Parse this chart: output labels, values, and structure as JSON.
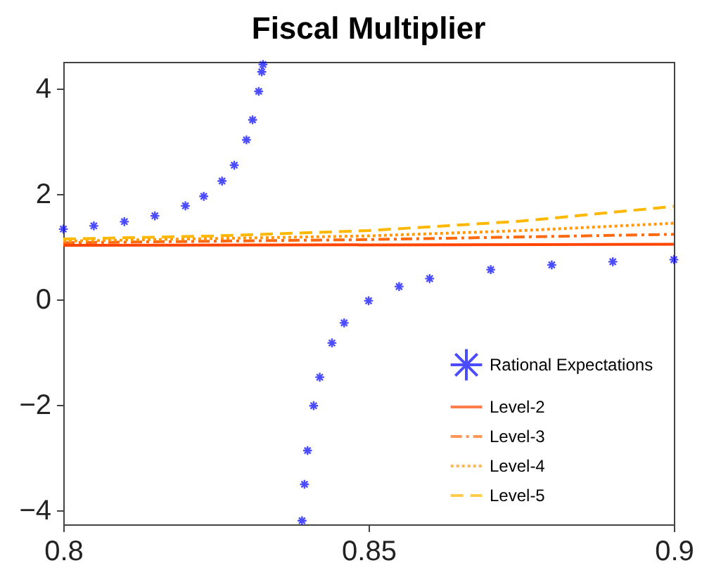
{
  "chart_data": {
    "type": "line",
    "title": "Fiscal Multiplier",
    "xlim": [
      0.8,
      0.9
    ],
    "xticks": [
      0.8,
      0.85,
      0.9
    ],
    "ylim": [
      -4.27,
      4.5
    ],
    "yticks": [
      -4,
      -2,
      0,
      2,
      4
    ],
    "grid": false,
    "legend": "bottom right",
    "series": [
      {
        "name": "Rational Expectations",
        "type": "scatter",
        "marker": "cross",
        "color": "#0000ff",
        "x": [
          0.8,
          0.805,
          0.81,
          0.815,
          0.82,
          0.823,
          0.826,
          0.828,
          0.83,
          0.831,
          0.832,
          0.8325,
          0.8327,
          0.8391,
          0.8395,
          0.84,
          0.841,
          0.842,
          0.844,
          0.846,
          0.85,
          0.855,
          0.86,
          0.87,
          0.88,
          0.89,
          0.9
        ],
        "values": [
          1.33,
          1.39,
          1.47,
          1.58,
          1.77,
          1.95,
          2.24,
          2.54,
          3.02,
          3.4,
          3.94,
          4.31,
          4.45,
          -4.2,
          -3.51,
          -2.87,
          -2.02,
          -1.48,
          -0.83,
          -0.45,
          -0.03,
          0.24,
          0.39,
          0.56,
          0.65,
          0.71,
          0.75
        ]
      },
      {
        "name": "Level-2",
        "line_style": "solid",
        "color": "#ff4500",
        "x": [
          0.8,
          0.9
        ],
        "values": [
          1.02,
          1.04
        ]
      },
      {
        "name": "Level-3",
        "line_style": "dashdot",
        "color": "#ff6a10",
        "x": [
          0.8,
          0.85,
          0.9
        ],
        "values": [
          1.07,
          1.13,
          1.23
        ]
      },
      {
        "name": "Level-4",
        "line_style": "dotted",
        "color": "#ff9a10",
        "x": [
          0.8,
          0.85,
          0.875,
          0.9
        ],
        "values": [
          1.1,
          1.2,
          1.3,
          1.44
        ]
      },
      {
        "name": "Level-5",
        "line_style": "dashed",
        "color": "#ffb800",
        "x": [
          0.8,
          0.825,
          0.85,
          0.875,
          0.9
        ],
        "values": [
          1.14,
          1.2,
          1.3,
          1.48,
          1.76
        ]
      }
    ]
  }
}
